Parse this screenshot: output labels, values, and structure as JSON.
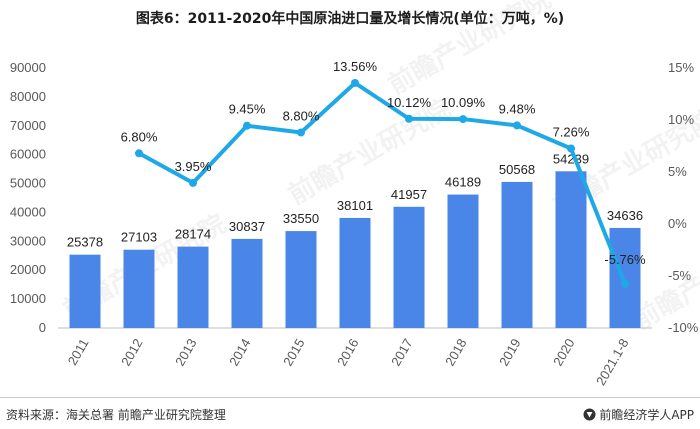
{
  "title": "图表6：2011-2020年中国原油进口量及增长情况(单位：万吨，%)",
  "footer": {
    "source": "资料来源：海关总署 前瞻产业研究院整理",
    "brand": "前瞻经济学人APP",
    "brand_icon": "qianzhan-logo-icon"
  },
  "watermark": "前瞻产业研究院",
  "colors": {
    "bar": "#4a86e8",
    "line": "#1fa8e8",
    "line_point": "#1fa8e8"
  },
  "chart_data": {
    "type": "bar+line",
    "categories": [
      "2011",
      "2012",
      "2013",
      "2014",
      "2015",
      "2016",
      "2017",
      "2018",
      "2019",
      "2020",
      "2021.1-8"
    ],
    "bar_values": [
      25378,
      27103,
      28174,
      30837,
      33550,
      38101,
      41957,
      46189,
      50568,
      54239,
      34636
    ],
    "bar_labels": [
      "25378",
      "27103",
      "28174",
      "30837",
      "33550",
      "38101",
      "41957",
      "46189",
      "50568",
      "54239",
      "34636"
    ],
    "growth_values": [
      null,
      6.8,
      3.95,
      9.45,
      8.8,
      13.56,
      10.12,
      10.09,
      9.48,
      7.26,
      -5.76
    ],
    "growth_labels": [
      "",
      "6.80%",
      "3.95%",
      "9.45%",
      "8.80%",
      "13.56%",
      "10.12%",
      "10.09%",
      "9.48%",
      "7.26%",
      "-5.76%"
    ],
    "left_axis": {
      "min": 0,
      "max": 90000,
      "step": 10000,
      "ticks": [
        "0",
        "10000",
        "20000",
        "30000",
        "40000",
        "50000",
        "60000",
        "70000",
        "80000",
        "90000"
      ]
    },
    "right_axis": {
      "min": -10,
      "max": 15,
      "step": 5,
      "ticks": [
        "-10%",
        "-5%",
        "0%",
        "5%",
        "10%",
        "15%"
      ]
    },
    "grid": false,
    "legend": "none"
  }
}
